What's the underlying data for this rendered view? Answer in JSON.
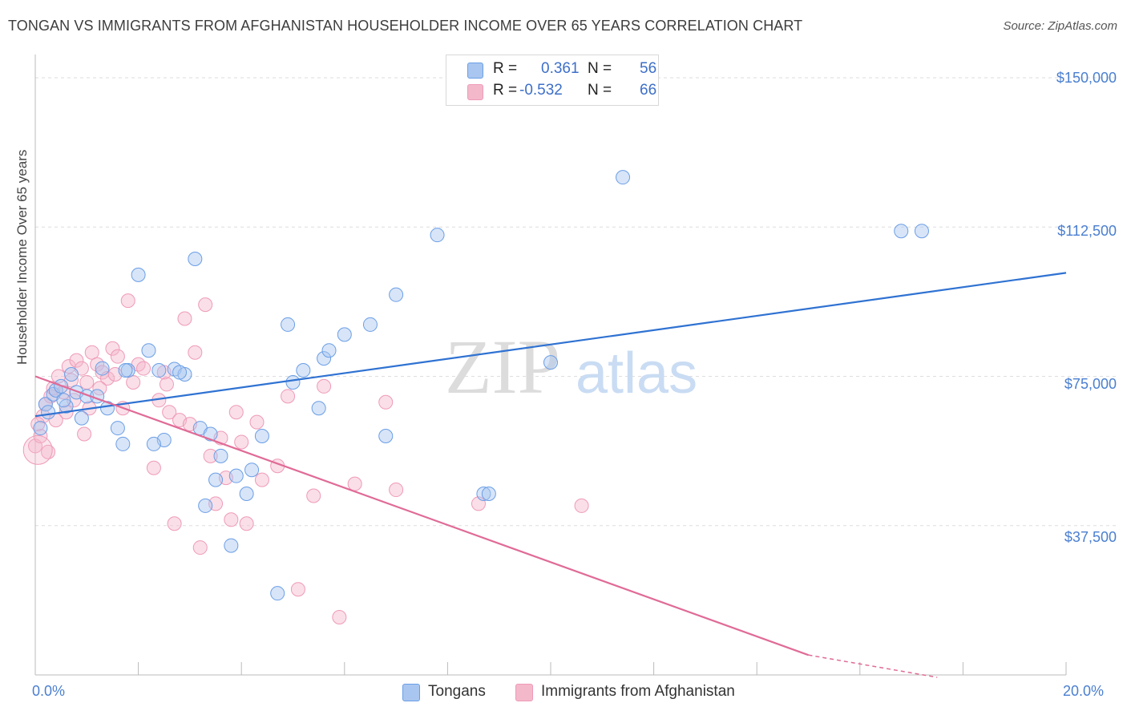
{
  "title": "TONGAN VS IMMIGRANTS FROM AFGHANISTAN HOUSEHOLDER INCOME OVER 65 YEARS CORRELATION CHART",
  "source": "Source: ZipAtlas.com",
  "watermark": {
    "zip": "ZIP",
    "atlas": "atlas"
  },
  "legend_top": [
    {
      "r_label": "R =",
      "r_value": "0.361",
      "n_label": "N =",
      "n_value": "56",
      "color": "#a9c6f0"
    },
    {
      "r_label": "R =",
      "r_value": "-0.532",
      "n_label": "N =",
      "n_value": "66",
      "color": "#f4b8cb"
    }
  ],
  "chart_data": {
    "type": "scatter",
    "title": "TONGAN VS IMMIGRANTS FROM AFGHANISTAN HOUSEHOLDER INCOME OVER 65 YEARS CORRELATION CHART",
    "xlabel": "",
    "ylabel": "Householder Income Over 65 years",
    "xlim": [
      0,
      20
    ],
    "ylim": [
      0,
      150000
    ],
    "x_tick_labels": [
      "0.0%",
      "20.0%"
    ],
    "y_tick_labels": [
      "$37,500",
      "$75,000",
      "$112,500",
      "$150,000"
    ],
    "y_ticks": [
      37500,
      75000,
      112500,
      150000
    ],
    "legend_position": "bottom-center",
    "series": [
      {
        "name": "Tongans",
        "color": "#6a9ee6",
        "trend": {
          "x": [
            0,
            20
          ],
          "y": [
            65000,
            101000
          ],
          "color": "#2f72d2"
        },
        "points": [
          [
            0.2,
            68000
          ],
          [
            0.35,
            70500
          ],
          [
            0.4,
            71500
          ],
          [
            0.5,
            72500
          ],
          [
            0.6,
            67500
          ],
          [
            0.7,
            75500
          ],
          [
            0.8,
            71000
          ],
          [
            0.9,
            64500
          ],
          [
            1.0,
            70000
          ],
          [
            1.3,
            77000
          ],
          [
            1.4,
            67000
          ],
          [
            1.6,
            62000
          ],
          [
            1.7,
            58000
          ],
          [
            1.8,
            76500
          ],
          [
            2.0,
            100500
          ],
          [
            2.2,
            81500
          ],
          [
            2.4,
            76500
          ],
          [
            2.5,
            59000
          ],
          [
            2.7,
            76800
          ],
          [
            2.9,
            75500
          ],
          [
            3.1,
            104500
          ],
          [
            3.2,
            62000
          ],
          [
            3.3,
            42500
          ],
          [
            3.5,
            49000
          ],
          [
            3.6,
            55000
          ],
          [
            3.8,
            32500
          ],
          [
            3.9,
            50000
          ],
          [
            4.2,
            51500
          ],
          [
            4.4,
            60000
          ],
          [
            4.7,
            20500
          ],
          [
            4.9,
            88000
          ],
          [
            5.0,
            73500
          ],
          [
            5.2,
            76500
          ],
          [
            5.6,
            79500
          ],
          [
            5.7,
            81500
          ],
          [
            6.0,
            85500
          ],
          [
            6.5,
            88000
          ],
          [
            6.8,
            60000
          ],
          [
            7.0,
            95500
          ],
          [
            7.8,
            110500
          ],
          [
            8.7,
            45500
          ],
          [
            8.8,
            45500
          ],
          [
            10.0,
            78500
          ],
          [
            11.4,
            125000
          ],
          [
            16.8,
            111500
          ],
          [
            17.2,
            111500
          ],
          [
            0.1,
            62000
          ],
          [
            1.2,
            70000
          ],
          [
            2.8,
            76000
          ],
          [
            3.4,
            60500
          ],
          [
            0.25,
            66000
          ],
          [
            1.75,
            76500
          ],
          [
            2.3,
            58000
          ],
          [
            4.1,
            45500
          ],
          [
            5.5,
            67000
          ],
          [
            0.55,
            69000
          ]
        ]
      },
      {
        "name": "Immigrants from Afghanistan",
        "color": "#ef9ab8",
        "trend": {
          "x": [
            0,
            15
          ],
          "y": [
            75000,
            5000
          ],
          "color": "#e06b97"
        },
        "trend_dashed": {
          "x": [
            15,
            17.5
          ],
          "y": [
            5000,
            -6500
          ],
          "color": "#e06b97"
        },
        "points": [
          [
            0.0,
            57500
          ],
          [
            0.1,
            60000
          ],
          [
            0.15,
            65000
          ],
          [
            0.2,
            68000
          ],
          [
            0.3,
            70000
          ],
          [
            0.35,
            72000
          ],
          [
            0.4,
            64000
          ],
          [
            0.45,
            75000
          ],
          [
            0.55,
            71000
          ],
          [
            0.6,
            66000
          ],
          [
            0.65,
            77500
          ],
          [
            0.7,
            74000
          ],
          [
            0.8,
            79000
          ],
          [
            0.9,
            77000
          ],
          [
            1.0,
            73500
          ],
          [
            1.05,
            67000
          ],
          [
            1.1,
            81000
          ],
          [
            1.2,
            78000
          ],
          [
            1.3,
            76000
          ],
          [
            1.4,
            74500
          ],
          [
            1.5,
            82000
          ],
          [
            1.6,
            80000
          ],
          [
            1.7,
            67000
          ],
          [
            1.8,
            94000
          ],
          [
            1.9,
            73500
          ],
          [
            2.0,
            78000
          ],
          [
            2.1,
            77000
          ],
          [
            2.3,
            52000
          ],
          [
            2.4,
            69000
          ],
          [
            2.5,
            76000
          ],
          [
            2.6,
            66000
          ],
          [
            2.7,
            38000
          ],
          [
            2.8,
            64000
          ],
          [
            2.9,
            89500
          ],
          [
            3.0,
            63000
          ],
          [
            3.1,
            81000
          ],
          [
            3.2,
            32000
          ],
          [
            3.3,
            93000
          ],
          [
            3.4,
            55000
          ],
          [
            3.5,
            43000
          ],
          [
            3.7,
            49500
          ],
          [
            3.8,
            39000
          ],
          [
            3.9,
            66000
          ],
          [
            4.0,
            58500
          ],
          [
            4.1,
            38000
          ],
          [
            4.3,
            63500
          ],
          [
            4.4,
            49000
          ],
          [
            4.7,
            52500
          ],
          [
            4.9,
            70000
          ],
          [
            5.1,
            21500
          ],
          [
            5.4,
            45000
          ],
          [
            5.6,
            72500
          ],
          [
            6.2,
            48000
          ],
          [
            6.8,
            68500
          ],
          [
            7.0,
            46500
          ],
          [
            8.6,
            43000
          ],
          [
            10.6,
            42500
          ],
          [
            1.25,
            72000
          ],
          [
            0.25,
            56000
          ],
          [
            2.55,
            73000
          ],
          [
            1.55,
            75500
          ],
          [
            0.95,
            60500
          ],
          [
            5.9,
            14500
          ],
          [
            3.6,
            59500
          ],
          [
            0.05,
            63000
          ],
          [
            0.75,
            69000
          ]
        ]
      }
    ]
  },
  "legend_bottom": [
    {
      "label": "Tongans",
      "color": "#a9c6f0"
    },
    {
      "label": "Immigrants from Afghanistan",
      "color": "#f4b8cb"
    }
  ]
}
